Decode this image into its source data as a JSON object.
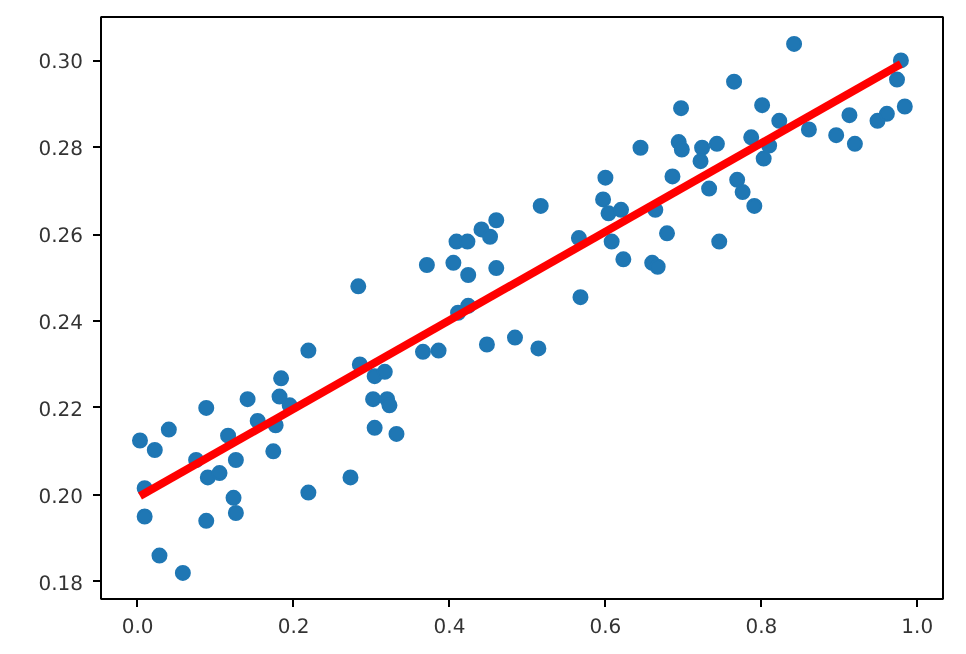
{
  "chart_data": {
    "type": "scatter",
    "xlim": [
      -0.047,
      1.033
    ],
    "ylim": [
      0.176,
      0.31
    ],
    "xticks": [
      {
        "value": 0,
        "label": "0.0"
      },
      {
        "value": 0.2,
        "label": "0.2"
      },
      {
        "value": 0.4,
        "label": "0.4"
      },
      {
        "value": 0.6,
        "label": "0.6"
      },
      {
        "value": 0.8,
        "label": "0.8"
      },
      {
        "value": 1,
        "label": "1.0"
      }
    ],
    "yticks": [
      0.18,
      {
        "value": 0.2,
        "label": "0.20"
      },
      0.22,
      0.24,
      0.26,
      0.28,
      {
        "value": 0.3,
        "label": "0.30"
      }
    ],
    "grid": false,
    "series": [
      {
        "marker": "circle",
        "color": "#1f77b4",
        "x": [
          0.003,
          0.022,
          0.04,
          0.009,
          0.009,
          0.028,
          0.058,
          0.075,
          0.088,
          0.09,
          0.105,
          0.088,
          0.116,
          0.126,
          0.123,
          0.126,
          0.141,
          0.154,
          0.174,
          0.177,
          0.184,
          0.182,
          0.195,
          0.219,
          0.219,
          0.273,
          0.283,
          0.285,
          0.304,
          0.317,
          0.302,
          0.32,
          0.323,
          0.304,
          0.332,
          0.366,
          0.386,
          0.371,
          0.405,
          0.409,
          0.423,
          0.424,
          0.441,
          0.452,
          0.46,
          0.46,
          0.448,
          0.484,
          0.411,
          0.424,
          0.517,
          0.514,
          0.566,
          0.568,
          0.6,
          0.597,
          0.604,
          0.62,
          0.608,
          0.623,
          0.645,
          0.664,
          0.679,
          0.66,
          0.667,
          0.686,
          0.697,
          0.694,
          0.698,
          0.724,
          0.722,
          0.733,
          0.743,
          0.746,
          0.765,
          0.769,
          0.776,
          0.791,
          0.787,
          0.801,
          0.803,
          0.81,
          0.823,
          0.842,
          0.861,
          0.896,
          0.913,
          0.92,
          0.949,
          0.961,
          0.979,
          0.974,
          0.984
        ],
        "values": [
          0.2125,
          0.2103,
          0.215,
          0.2015,
          0.195,
          0.186,
          0.182,
          0.208,
          0.22,
          0.204,
          0.205,
          0.194,
          0.2136,
          0.208,
          0.1993,
          0.1958,
          0.222,
          0.217,
          0.21,
          0.216,
          0.2268,
          0.2226,
          0.2206,
          0.2332,
          0.2005,
          0.204,
          0.248,
          0.23,
          0.2273,
          0.2283,
          0.222,
          0.222,
          0.2206,
          0.2154,
          0.214,
          0.2329,
          0.2332,
          0.2529,
          0.2534,
          0.2583,
          0.2583,
          0.2506,
          0.2611,
          0.2594,
          0.2632,
          0.2522,
          0.2346,
          0.2362,
          0.2419,
          0.2435,
          0.2665,
          0.2337,
          0.2591,
          0.2455,
          0.273,
          0.268,
          0.2648,
          0.2656,
          0.2583,
          0.2542,
          0.2799,
          0.2656,
          0.2602,
          0.2534,
          0.2525,
          0.2733,
          0.289,
          0.2812,
          0.2795,
          0.2799,
          0.2768,
          0.2705,
          0.2808,
          0.2583,
          0.2951,
          0.2725,
          0.2697,
          0.2665,
          0.2823,
          0.2897,
          0.2774,
          0.2804,
          0.2861,
          0.3038,
          0.2841,
          0.2828,
          0.2874,
          0.2808,
          0.2861,
          0.2877,
          0.3,
          0.2956,
          0.2894
        ]
      },
      {
        "type": "line",
        "color": "#ff0000",
        "x": [
          0.003,
          0.979
        ],
        "values": [
          0.1997,
          0.2992
        ]
      }
    ]
  }
}
